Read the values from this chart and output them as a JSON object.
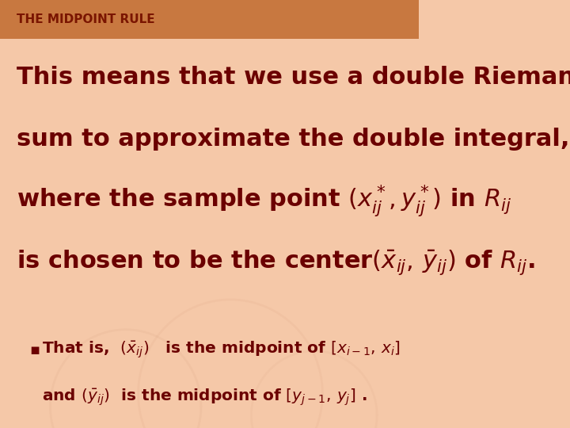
{
  "title": "THE MIDPOINT RULE",
  "title_color": "#8B2500",
  "title_bg_color": "#D4906A",
  "bg_color": "#F5C8A8",
  "text_color": "#6B0000",
  "main_text_lines": [
    "This means that we use a double Riemann",
    "sum to approximate the double integral,",
    "where the sample point (α) in β",
    "is chosen to be the center(γ) of δ."
  ],
  "bullet_line1": "That is,  (ε)   is the midpoint of [x",
  "bullet_line2": "and (ζ)  is the midpoint of [y",
  "figsize": [
    7.2,
    5.4
  ],
  "dpi": 100
}
